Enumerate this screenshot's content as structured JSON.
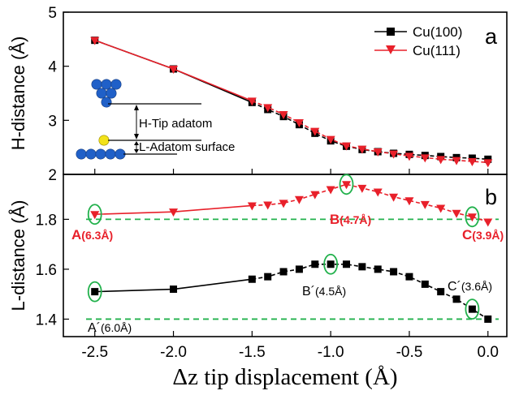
{
  "colors": {
    "cu100": "#000000",
    "cu111": "#e8202a",
    "guide_line": "#22b14c",
    "highlight_circle": "#22b14c",
    "atom_blue": "#2060c8",
    "atom_yellow": "#f2e21a"
  },
  "figure": {
    "xaxis_title": "Δz tip displacement (Å)"
  },
  "chart_data": [
    {
      "type": "line",
      "panel": "a",
      "ylabel": "H-distance (Å)",
      "xlim": [
        -2.7,
        0.12
      ],
      "ylim": [
        2,
        5
      ],
      "yticks": [
        2,
        3,
        4,
        5
      ],
      "legend_position": "top-right",
      "series": [
        {
          "name": "Cu(100)",
          "marker": "square",
          "x": [
            -2.5,
            -2.0,
            -1.5,
            -1.4,
            -1.3,
            -1.2,
            -1.1,
            -1.0,
            -0.9,
            -0.8,
            -0.7,
            -0.6,
            -0.5,
            -0.4,
            -0.3,
            -0.2,
            -0.1,
            0.0
          ],
          "y": [
            4.48,
            3.95,
            3.33,
            3.2,
            3.07,
            2.92,
            2.76,
            2.62,
            2.52,
            2.46,
            2.42,
            2.39,
            2.37,
            2.35,
            2.33,
            2.31,
            2.3,
            2.28
          ]
        },
        {
          "name": "Cu(111)",
          "marker": "triangle-down",
          "x": [
            -2.5,
            -2.0,
            -1.5,
            -1.4,
            -1.3,
            -1.2,
            -1.1,
            -1.0,
            -0.9,
            -0.8,
            -0.7,
            -0.6,
            -0.5,
            -0.4,
            -0.3,
            -0.2,
            -0.1,
            0.0
          ],
          "y": [
            4.48,
            3.95,
            3.36,
            3.24,
            3.11,
            2.96,
            2.8,
            2.65,
            2.53,
            2.47,
            2.42,
            2.38,
            2.34,
            2.31,
            2.28,
            2.26,
            2.24,
            2.22
          ]
        }
      ],
      "inset": {
        "label_upper": "H-Tip adatom",
        "label_lower": "L-Adatom surface"
      }
    },
    {
      "type": "line",
      "panel": "b",
      "ylabel": "L-distance (Å)",
      "xlim": [
        -2.7,
        0.12
      ],
      "ylim": [
        1.33,
        1.98
      ],
      "yticks": [
        1.4,
        1.6,
        1.8
      ],
      "xticks": [
        -2.5,
        -2.0,
        -1.5,
        -1.0,
        -0.5,
        0.0
      ],
      "xtick_labels": [
        "-2.5",
        "-2.0",
        "-1.5",
        "-1.0",
        "-0.5",
        "0.0"
      ],
      "reference_lines": [
        1.8,
        1.4
      ],
      "series": [
        {
          "name": "Cu(111)",
          "marker": "triangle-down",
          "x": [
            -2.5,
            -2.0,
            -1.5,
            -1.4,
            -1.3,
            -1.2,
            -1.1,
            -1.0,
            -0.9,
            -0.8,
            -0.7,
            -0.6,
            -0.5,
            -0.4,
            -0.3,
            -0.2,
            -0.1,
            0.0
          ],
          "y": [
            1.82,
            1.83,
            1.855,
            1.858,
            1.865,
            1.88,
            1.9,
            1.92,
            1.94,
            1.925,
            1.91,
            1.89,
            1.875,
            1.86,
            1.845,
            1.825,
            1.81,
            1.79
          ]
        },
        {
          "name": "Cu(100)",
          "marker": "square",
          "x": [
            -2.5,
            -2.0,
            -1.5,
            -1.4,
            -1.3,
            -1.2,
            -1.1,
            -1.0,
            -0.9,
            -0.8,
            -0.7,
            -0.6,
            -0.5,
            -0.4,
            -0.3,
            -0.2,
            -0.1,
            0.0
          ],
          "y": [
            1.51,
            1.52,
            1.56,
            1.57,
            1.59,
            1.6,
            1.62,
            1.62,
            1.62,
            1.61,
            1.6,
            1.59,
            1.57,
            1.54,
            1.51,
            1.48,
            1.44,
            1.4
          ]
        }
      ],
      "annotations": {
        "A": "A",
        "A_value": "(6.3Å)",
        "B": "B",
        "B_value": "(4.7Å)",
        "C": "C",
        "C_value": "(3.9Å)",
        "A_prime": "A´",
        "A_prime_value": "(6.0Å)",
        "B_prime": "B´",
        "B_prime_value": "(4.5Å)",
        "C_prime": "C´",
        "C_prime_value": "(3.6Å)"
      },
      "highlighted_points": [
        {
          "series": "Cu(111)",
          "x": -2.5,
          "y": 1.82
        },
        {
          "series": "Cu(111)",
          "x": -0.9,
          "y": 1.94
        },
        {
          "series": "Cu(111)",
          "x": -0.1,
          "y": 1.81
        },
        {
          "series": "Cu(100)",
          "x": -2.5,
          "y": 1.51
        },
        {
          "series": "Cu(100)",
          "x": -1.0,
          "y": 1.62
        },
        {
          "series": "Cu(100)",
          "x": -0.1,
          "y": 1.44
        }
      ]
    }
  ]
}
